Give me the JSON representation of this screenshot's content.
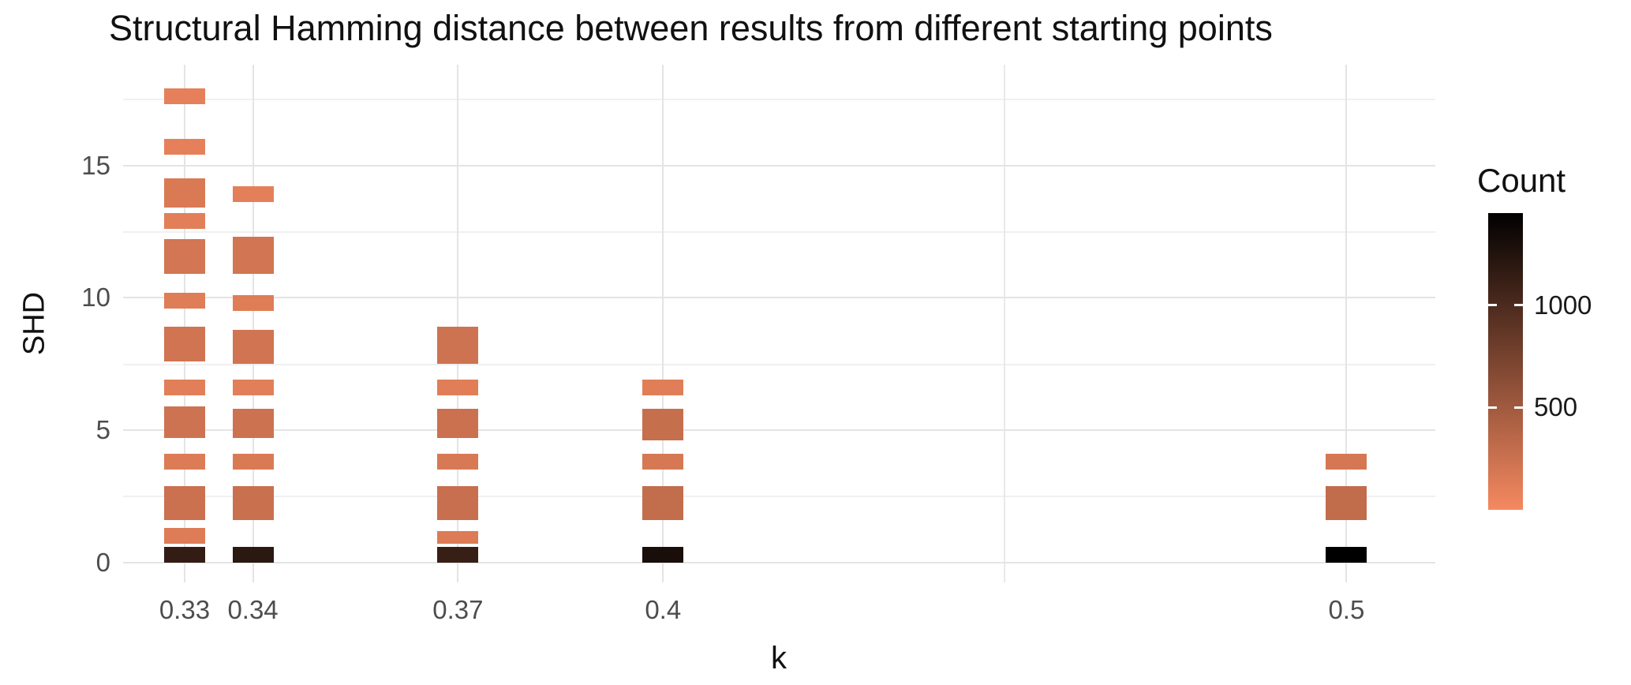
{
  "title": "Structural Hamming distance between results from different starting points",
  "colors": {
    "tile_low": "#F58960",
    "tile_high": "#000000",
    "grid_major": "#e4e4e4",
    "grid_minor": "#f0f0f0",
    "text": "#111111",
    "tick_text": "#4d4d4d",
    "background": "#ffffff"
  },
  "chart_data": {
    "type": "heatmap",
    "title": "Structural Hamming distance between results from different starting points",
    "xlabel": "k",
    "ylabel": "SHD",
    "xlim": [
      0.321,
      0.513
    ],
    "ylim": [
      -0.75,
      18.8
    ],
    "x_breaks": [
      0.33,
      0.34,
      0.37,
      0.4,
      0.5
    ],
    "x_break_labels": [
      "0.33",
      "0.34",
      "0.37",
      "0.4",
      "0.5"
    ],
    "x_minor_breaks": [
      0.45
    ],
    "y_breaks": [
      0,
      5,
      10,
      15
    ],
    "y_break_labels": [
      "0",
      "5",
      "10",
      "15"
    ],
    "y_minor_breaks": [
      2.5,
      7.5,
      12.5,
      17.5
    ],
    "grid": true,
    "legend": {
      "title": "Count",
      "position": "right",
      "min": 0,
      "max": 1450,
      "ticks": [
        500,
        1000
      ],
      "tick_labels": [
        "500",
        "1000"
      ]
    },
    "tile_width": 0.006,
    "tiles": [
      {
        "k": 0.33,
        "y0": 17.3,
        "y1": 17.9,
        "count": 90
      },
      {
        "k": 0.33,
        "y0": 15.4,
        "y1": 16.0,
        "count": 90
      },
      {
        "k": 0.33,
        "y0": 13.4,
        "y1": 14.5,
        "count": 160
      },
      {
        "k": 0.33,
        "y0": 12.6,
        "y1": 13.2,
        "count": 110
      },
      {
        "k": 0.33,
        "y0": 10.9,
        "y1": 12.2,
        "count": 200
      },
      {
        "k": 0.33,
        "y0": 9.6,
        "y1": 10.2,
        "count": 130
      },
      {
        "k": 0.33,
        "y0": 7.6,
        "y1": 8.9,
        "count": 220
      },
      {
        "k": 0.33,
        "y0": 6.3,
        "y1": 6.9,
        "count": 110
      },
      {
        "k": 0.33,
        "y0": 4.7,
        "y1": 5.9,
        "count": 230
      },
      {
        "k": 0.33,
        "y0": 3.5,
        "y1": 4.1,
        "count": 150
      },
      {
        "k": 0.33,
        "y0": 1.6,
        "y1": 2.9,
        "count": 250
      },
      {
        "k": 0.33,
        "y0": 0.7,
        "y1": 1.3,
        "count": 140
      },
      {
        "k": 0.33,
        "y0": 0.0,
        "y1": 0.6,
        "count": 1150
      },
      {
        "k": 0.34,
        "y0": 13.6,
        "y1": 14.2,
        "count": 100
      },
      {
        "k": 0.34,
        "y0": 10.9,
        "y1": 12.3,
        "count": 210
      },
      {
        "k": 0.34,
        "y0": 9.5,
        "y1": 10.1,
        "count": 130
      },
      {
        "k": 0.34,
        "y0": 7.5,
        "y1": 8.8,
        "count": 220
      },
      {
        "k": 0.34,
        "y0": 6.3,
        "y1": 6.9,
        "count": 110
      },
      {
        "k": 0.34,
        "y0": 4.7,
        "y1": 5.8,
        "count": 240
      },
      {
        "k": 0.34,
        "y0": 3.5,
        "y1": 4.1,
        "count": 160
      },
      {
        "k": 0.34,
        "y0": 1.6,
        "y1": 2.9,
        "count": 260
      },
      {
        "k": 0.34,
        "y0": 0.0,
        "y1": 0.6,
        "count": 1200
      },
      {
        "k": 0.37,
        "y0": 7.5,
        "y1": 8.9,
        "count": 230
      },
      {
        "k": 0.37,
        "y0": 6.3,
        "y1": 6.9,
        "count": 120
      },
      {
        "k": 0.37,
        "y0": 4.7,
        "y1": 5.8,
        "count": 250
      },
      {
        "k": 0.37,
        "y0": 3.5,
        "y1": 4.1,
        "count": 170
      },
      {
        "k": 0.37,
        "y0": 1.6,
        "y1": 2.9,
        "count": 270
      },
      {
        "k": 0.37,
        "y0": 0.7,
        "y1": 1.2,
        "count": 150
      },
      {
        "k": 0.37,
        "y0": 0.0,
        "y1": 0.6,
        "count": 1120
      },
      {
        "k": 0.4,
        "y0": 6.3,
        "y1": 6.9,
        "count": 120
      },
      {
        "k": 0.4,
        "y0": 4.6,
        "y1": 5.8,
        "count": 280
      },
      {
        "k": 0.4,
        "y0": 3.5,
        "y1": 4.1,
        "count": 180
      },
      {
        "k": 0.4,
        "y0": 1.6,
        "y1": 2.9,
        "count": 300
      },
      {
        "k": 0.4,
        "y0": 0.0,
        "y1": 0.6,
        "count": 1300
      },
      {
        "k": 0.5,
        "y0": 3.5,
        "y1": 4.1,
        "count": 190
      },
      {
        "k": 0.5,
        "y0": 1.6,
        "y1": 2.9,
        "count": 310
      },
      {
        "k": 0.5,
        "y0": 0.0,
        "y1": 0.6,
        "count": 1450
      }
    ]
  }
}
